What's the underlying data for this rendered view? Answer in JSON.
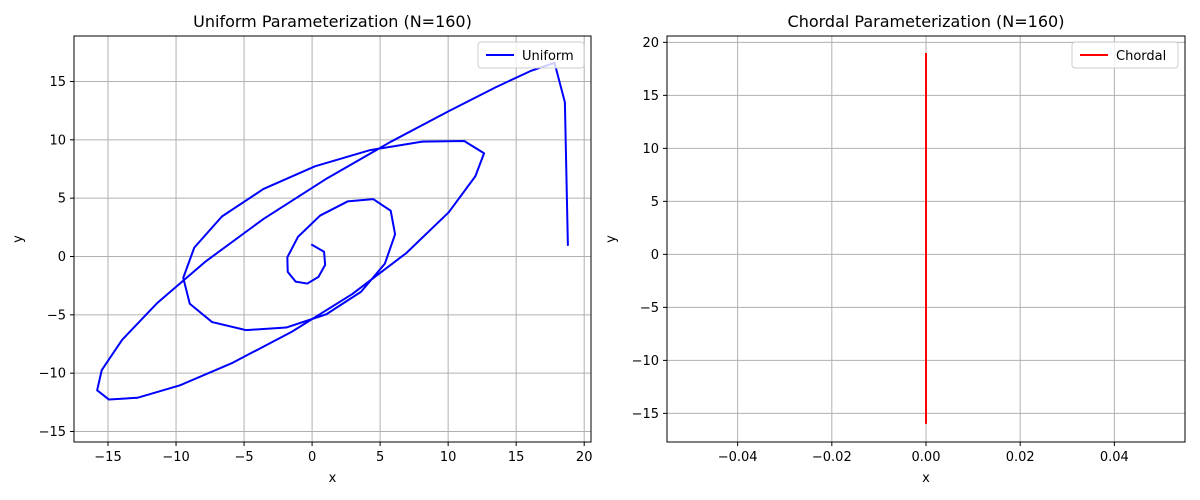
{
  "chart_data": [
    {
      "type": "line",
      "title": "Uniform Parameterization (N=160)",
      "xlabel": "x",
      "ylabel": "y",
      "xlim": [
        -17.5,
        20.5
      ],
      "ylim": [
        -15.9,
        18.9
      ],
      "xticks": [
        -15,
        -10,
        -5,
        0,
        5,
        10,
        15,
        20
      ],
      "yticks": [
        -15,
        -10,
        -5,
        0,
        5,
        10,
        15
      ],
      "xtick_labels": [
        "−15",
        "−10",
        "−5",
        "0",
        "5",
        "10",
        "15",
        "20"
      ],
      "ytick_labels": [
        "−15",
        "−10",
        "−5",
        "0",
        "5",
        "10",
        "15"
      ],
      "grid": true,
      "legend": "top-right",
      "series": [
        {
          "name": "Uniform",
          "color": "#0000ff",
          "x": [
            0.0,
            0.88,
            0.96,
            0.47,
            -0.35,
            -1.21,
            -1.79,
            -1.82,
            -1.04,
            0.59,
            2.61,
            4.49,
            5.78,
            6.1,
            5.35,
            3.6,
            1.05,
            -1.9,
            -4.86,
            -7.35,
            -8.99,
            -9.47,
            -8.66,
            -6.63,
            -3.57,
            0.21,
            4.27,
            8.1,
            11.18,
            12.64,
            12.0,
            10.05,
            6.93,
            2.95,
            -1.49,
            -5.84,
            -9.71,
            -12.84,
            -14.93,
            -15.8,
            -15.46,
            -13.96,
            -11.36,
            -7.82,
            -3.57,
            1.1,
            5.76,
            10.03,
            13.5,
            16.1,
            17.82,
            18.58,
            18.8
          ],
          "y": [
            1.0,
            0.41,
            -0.72,
            -1.75,
            -2.32,
            -2.15,
            -1.32,
            -0.07,
            1.68,
            3.51,
            4.72,
            4.92,
            3.92,
            1.9,
            -0.61,
            -3.02,
            -4.95,
            -6.09,
            -6.31,
            -5.62,
            -4.05,
            -1.83,
            0.76,
            3.43,
            5.79,
            7.73,
            9.12,
            9.85,
            9.9,
            8.85,
            6.88,
            3.8,
            0.3,
            -3.22,
            -6.45,
            -9.11,
            -11.04,
            -12.11,
            -12.26,
            -11.47,
            -9.73,
            -7.14,
            -3.96,
            -0.42,
            3.22,
            6.7,
            9.82,
            12.45,
            14.51,
            15.92,
            16.6,
            13.22,
            1.0
          ]
        }
      ]
    },
    {
      "type": "line",
      "title": "Chordal Parameterization (N=160)",
      "xlabel": "x",
      "ylabel": "y",
      "xlim": [
        -0.055,
        0.055
      ],
      "ylim": [
        -17.7,
        20.6
      ],
      "xticks": [
        -0.04,
        -0.02,
        0.0,
        0.02,
        0.04
      ],
      "yticks": [
        -15,
        -10,
        -5,
        0,
        5,
        10,
        15,
        20
      ],
      "xtick_labels": [
        "−0.04",
        "−0.02",
        "0.00",
        "0.02",
        "0.04"
      ],
      "ytick_labels": [
        "−15",
        "−10",
        "−5",
        "0",
        "5",
        "10",
        "15",
        "20"
      ],
      "grid": true,
      "legend": "top-right",
      "series": [
        {
          "name": "Chordal",
          "color": "#ff0000",
          "x": [
            0.0,
            0.0
          ],
          "y": [
            -15.9,
            18.9
          ]
        }
      ]
    }
  ]
}
